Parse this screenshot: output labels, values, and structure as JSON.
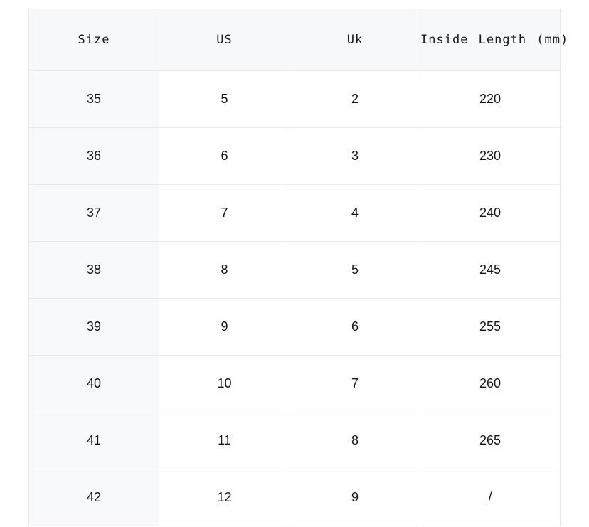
{
  "chart_data": {
    "type": "table",
    "columns": [
      "Size",
      "US",
      "Uk",
      "Inside Length (mm)"
    ],
    "rows": [
      [
        "35",
        "5",
        "2",
        "220"
      ],
      [
        "36",
        "6",
        "3",
        "230"
      ],
      [
        "37",
        "7",
        "4",
        "240"
      ],
      [
        "38",
        "8",
        "5",
        "245"
      ],
      [
        "39",
        "9",
        "6",
        "255"
      ],
      [
        "40",
        "10",
        "7",
        "260"
      ],
      [
        "41",
        "11",
        "8",
        "265"
      ],
      [
        "42",
        "12",
        "9",
        "/"
      ]
    ],
    "layout": {
      "grid": "on",
      "header_bg": "#f7f8fa",
      "first_column_bg": "#f8f9fb",
      "cell_bg": "#ffffff",
      "border_color": "#e9e9e9",
      "text_color": "#161616"
    }
  }
}
